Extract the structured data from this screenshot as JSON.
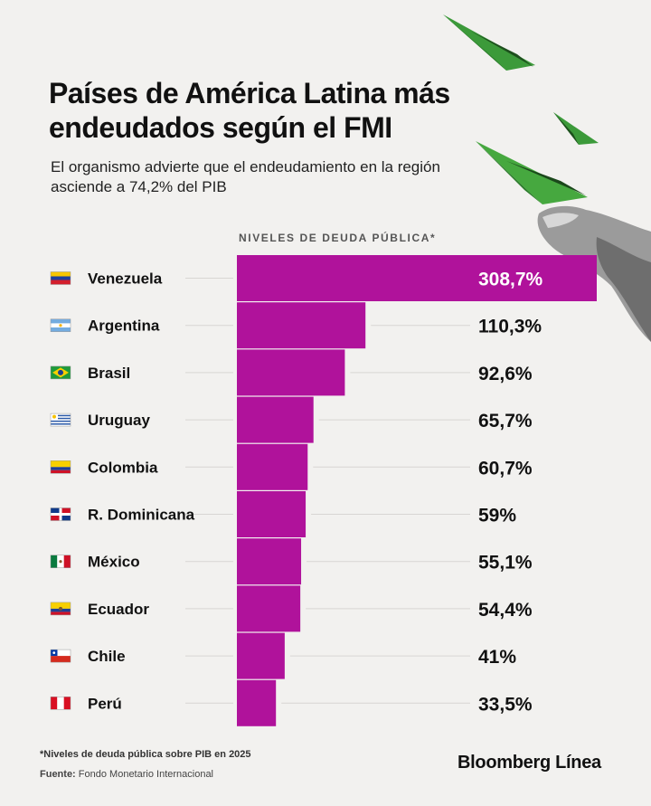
{
  "header": {
    "title": "Países de América Latina más endeudados según el FMI",
    "subtitle": "El organismo advierte que el endeudamiento en la región asciende a 74,2% del PIB"
  },
  "chart_data": {
    "type": "bar",
    "orientation": "horizontal",
    "title": "NIVELES DE DEUDA PÚBLICA*",
    "categories": [
      "Venezuela",
      "Argentina",
      "Brasil",
      "Uruguay",
      "Colombia",
      "R. Dominicana",
      "México",
      "Ecuador",
      "Chile",
      "Perú"
    ],
    "values": [
      308.7,
      110.3,
      92.6,
      65.7,
      60.7,
      59,
      55.1,
      54.4,
      41,
      33.5
    ],
    "value_labels": [
      "308,7%",
      "110,3%",
      "92,6%",
      "65,7%",
      "60,7%",
      "59%",
      "55,1%",
      "54,4%",
      "41%",
      "33,5%"
    ],
    "unit": "% del PIB",
    "bar_color": "#b0129b",
    "grid": false,
    "legend": "none"
  },
  "flags": [
    "venezuela-flag-icon",
    "argentina-flag-icon",
    "brasil-flag-icon",
    "uruguay-flag-icon",
    "colombia-flag-icon",
    "dominicana-flag-icon",
    "mexico-flag-icon",
    "ecuador-flag-icon",
    "chile-flag-icon",
    "peru-flag-icon"
  ],
  "footer": {
    "footnote": "*Niveles de deuda pública sobre PIB en 2025",
    "source_label": "Fuente:",
    "source_text": "Fondo Monetario Internacional",
    "brand": "Bloomberg Línea"
  },
  "decoration": [
    "paper-plane-money-icon",
    "hand-icon"
  ]
}
